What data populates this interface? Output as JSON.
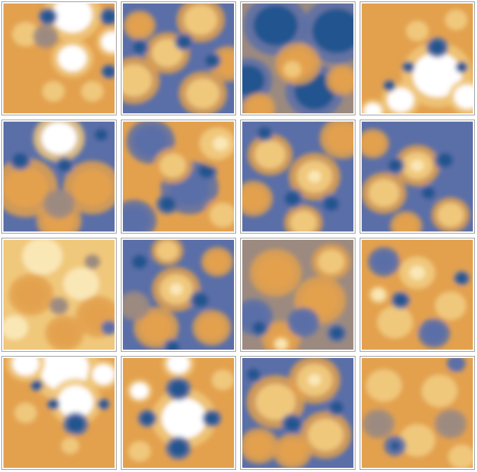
{
  "palette": {
    "c0": "#24548f",
    "c1": "#5a6ea8",
    "c2": "#9c8a80",
    "c3": "#e3a14e",
    "c4": "#f0c87b",
    "c5": "#fae7b6",
    "c6": "#ffffff"
  },
  "plots": [
    {
      "id": "r1c1",
      "bg": "c3",
      "blobs": [
        [
          "c6",
          0.62,
          0.1,
          0.18
        ],
        [
          "c6",
          0.62,
          0.5,
          0.13
        ],
        [
          "c6",
          0.98,
          0.35,
          0.1
        ],
        [
          "c0",
          0.4,
          0.12,
          0.06
        ],
        [
          "c0",
          0.95,
          0.12,
          0.06
        ],
        [
          "c0",
          0.95,
          0.62,
          0.05
        ],
        [
          "c4",
          0.2,
          0.28,
          0.12
        ],
        [
          "c4",
          0.45,
          0.8,
          0.1
        ],
        [
          "c4",
          0.8,
          0.8,
          0.1
        ],
        [
          "c2",
          0.38,
          0.3,
          0.08
        ]
      ]
    },
    {
      "id": "r1c2",
      "bg": "c1",
      "blobs": [
        [
          "c4",
          0.7,
          0.15,
          0.15
        ],
        [
          "c4",
          0.4,
          0.45,
          0.14
        ],
        [
          "c4",
          0.72,
          0.82,
          0.15
        ],
        [
          "c4",
          0.1,
          0.7,
          0.16
        ],
        [
          "c3",
          0.95,
          0.55,
          0.12
        ],
        [
          "c3",
          0.15,
          0.2,
          0.1
        ],
        [
          "c0",
          0.55,
          0.35,
          0.06
        ],
        [
          "c0",
          0.8,
          0.52,
          0.06
        ],
        [
          "c0",
          0.15,
          0.4,
          0.06
        ]
      ]
    },
    {
      "id": "r1c3",
      "bg": "c2",
      "blobs": [
        [
          "c0",
          0.85,
          0.25,
          0.22
        ],
        [
          "c0",
          0.3,
          0.2,
          0.2
        ],
        [
          "c0",
          0.05,
          0.7,
          0.15
        ],
        [
          "c0",
          0.65,
          0.8,
          0.18
        ],
        [
          "c3",
          0.5,
          0.55,
          0.14
        ],
        [
          "c3",
          0.9,
          0.7,
          0.1
        ],
        [
          "c4",
          0.45,
          0.6,
          0.08
        ],
        [
          "c3",
          0.15,
          0.95,
          0.1
        ]
      ]
    },
    {
      "id": "r1c4",
      "bg": "c3",
      "blobs": [
        [
          "c6",
          0.68,
          0.65,
          0.22
        ],
        [
          "c6",
          0.35,
          0.88,
          0.12
        ],
        [
          "c6",
          0.95,
          0.85,
          0.12
        ],
        [
          "c6",
          0.1,
          0.98,
          0.08
        ],
        [
          "c0",
          0.68,
          0.4,
          0.07
        ],
        [
          "c0",
          0.42,
          0.58,
          0.04
        ],
        [
          "c0",
          0.9,
          0.58,
          0.04
        ],
        [
          "c0",
          0.25,
          0.75,
          0.04
        ],
        [
          "c4",
          0.5,
          0.25,
          0.1
        ],
        [
          "c4",
          0.85,
          0.15,
          0.1
        ]
      ]
    },
    {
      "id": "r2c1",
      "bg": "c1",
      "blobs": [
        [
          "c6",
          0.5,
          0.15,
          0.16
        ],
        [
          "c3",
          0.2,
          0.6,
          0.2
        ],
        [
          "c3",
          0.8,
          0.6,
          0.18
        ],
        [
          "c3",
          0.5,
          0.9,
          0.14
        ],
        [
          "c0",
          0.55,
          0.4,
          0.06
        ],
        [
          "c0",
          0.15,
          0.35,
          0.07
        ],
        [
          "c0",
          0.88,
          0.12,
          0.06
        ],
        [
          "c2",
          0.5,
          0.75,
          0.1
        ]
      ]
    },
    {
      "id": "r2c2",
      "bg": "c3",
      "blobs": [
        [
          "c1",
          0.25,
          0.18,
          0.15
        ],
        [
          "c1",
          0.6,
          0.6,
          0.18
        ],
        [
          "c1",
          0.1,
          0.9,
          0.14
        ],
        [
          "c0",
          0.75,
          0.45,
          0.07
        ],
        [
          "c0",
          0.4,
          0.75,
          0.07
        ],
        [
          "c4",
          0.85,
          0.2,
          0.16
        ],
        [
          "c4",
          0.45,
          0.4,
          0.12
        ],
        [
          "c4",
          0.9,
          0.85,
          0.12
        ],
        [
          "c5",
          0.88,
          0.2,
          0.07
        ]
      ]
    },
    {
      "id": "r2c3",
      "bg": "c1",
      "blobs": [
        [
          "c4",
          0.25,
          0.3,
          0.14
        ],
        [
          "c4",
          0.65,
          0.5,
          0.16
        ],
        [
          "c4",
          0.55,
          0.92,
          0.12
        ],
        [
          "c3",
          0.9,
          0.15,
          0.14
        ],
        [
          "c3",
          0.1,
          0.7,
          0.12
        ],
        [
          "c0",
          0.45,
          0.7,
          0.07
        ],
        [
          "c0",
          0.8,
          0.75,
          0.07
        ],
        [
          "c0",
          0.2,
          0.1,
          0.06
        ],
        [
          "c5",
          0.65,
          0.5,
          0.06
        ]
      ]
    },
    {
      "id": "r2c4",
      "bg": "c1",
      "blobs": [
        [
          "c4",
          0.5,
          0.4,
          0.14
        ],
        [
          "c4",
          0.2,
          0.65,
          0.14
        ],
        [
          "c4",
          0.8,
          0.85,
          0.12
        ],
        [
          "c3",
          0.1,
          0.2,
          0.1
        ],
        [
          "c3",
          0.4,
          0.95,
          0.1
        ],
        [
          "c0",
          0.75,
          0.35,
          0.07
        ],
        [
          "c0",
          0.3,
          0.4,
          0.06
        ],
        [
          "c0",
          0.6,
          0.65,
          0.06
        ],
        [
          "c5",
          0.5,
          0.4,
          0.06
        ]
      ]
    },
    {
      "id": "r3c1",
      "bg": "c4",
      "blobs": [
        [
          "c5",
          0.35,
          0.15,
          0.18
        ],
        [
          "c5",
          0.7,
          0.4,
          0.16
        ],
        [
          "c5",
          0.1,
          0.8,
          0.12
        ],
        [
          "c3",
          0.25,
          0.5,
          0.14
        ],
        [
          "c3",
          0.85,
          0.7,
          0.14
        ],
        [
          "c3",
          0.55,
          0.85,
          0.12
        ],
        [
          "c2",
          0.5,
          0.6,
          0.06
        ],
        [
          "c2",
          0.8,
          0.2,
          0.05
        ],
        [
          "c1",
          0.95,
          0.8,
          0.05
        ]
      ]
    },
    {
      "id": "r3c2",
      "bg": "c1",
      "blobs": [
        [
          "c4",
          0.48,
          0.45,
          0.15
        ],
        [
          "c3",
          0.3,
          0.8,
          0.14
        ],
        [
          "c3",
          0.8,
          0.8,
          0.12
        ],
        [
          "c3",
          0.85,
          0.2,
          0.1
        ],
        [
          "c4",
          0.4,
          0.1,
          0.1
        ],
        [
          "c0",
          0.15,
          0.2,
          0.07
        ],
        [
          "c0",
          0.7,
          0.55,
          0.07
        ],
        [
          "c0",
          0.45,
          0.98,
          0.06
        ],
        [
          "c5",
          0.48,
          0.45,
          0.06
        ],
        [
          "c2",
          0.1,
          0.6,
          0.1
        ]
      ]
    },
    {
      "id": "r3c3",
      "bg": "c2",
      "blobs": [
        [
          "c3",
          0.3,
          0.3,
          0.16
        ],
        [
          "c3",
          0.7,
          0.55,
          0.16
        ],
        [
          "c3",
          0.35,
          0.9,
          0.12
        ],
        [
          "c4",
          0.8,
          0.2,
          0.12
        ],
        [
          "c1",
          0.1,
          0.7,
          0.12
        ],
        [
          "c1",
          0.55,
          0.75,
          0.1
        ],
        [
          "c0",
          0.15,
          0.8,
          0.06
        ],
        [
          "c0",
          0.85,
          0.85,
          0.06
        ],
        [
          "c5",
          0.35,
          0.95,
          0.05
        ]
      ]
    },
    {
      "id": "r3c4",
      "bg": "c3",
      "blobs": [
        [
          "c4",
          0.5,
          0.3,
          0.16
        ],
        [
          "c4",
          0.3,
          0.75,
          0.16
        ],
        [
          "c4",
          0.8,
          0.6,
          0.14
        ],
        [
          "c5",
          0.5,
          0.3,
          0.07
        ],
        [
          "c5",
          0.15,
          0.5,
          0.06
        ],
        [
          "c1",
          0.2,
          0.2,
          0.1
        ],
        [
          "c1",
          0.65,
          0.85,
          0.1
        ],
        [
          "c0",
          0.35,
          0.55,
          0.06
        ],
        [
          "c0",
          0.9,
          0.35,
          0.05
        ]
      ]
    },
    {
      "id": "r4c1",
      "bg": "c3",
      "blobs": [
        [
          "c6",
          0.55,
          0.1,
          0.22
        ],
        [
          "c6",
          0.65,
          0.4,
          0.16
        ],
        [
          "c6",
          0.2,
          0.05,
          0.12
        ],
        [
          "c6",
          0.9,
          0.15,
          0.1
        ],
        [
          "c0",
          0.65,
          0.6,
          0.08
        ],
        [
          "c0",
          0.3,
          0.25,
          0.04
        ],
        [
          "c0",
          0.45,
          0.42,
          0.04
        ],
        [
          "c0",
          0.9,
          0.42,
          0.04
        ],
        [
          "c4",
          0.2,
          0.5,
          0.1
        ],
        [
          "c4",
          0.6,
          0.8,
          0.08
        ]
      ]
    },
    {
      "id": "r4c2",
      "bg": "c3",
      "blobs": [
        [
          "c6",
          0.55,
          0.55,
          0.2
        ],
        [
          "c6",
          0.5,
          0.05,
          0.1
        ],
        [
          "c6",
          0.15,
          0.3,
          0.08
        ],
        [
          "c0",
          0.5,
          0.28,
          0.08
        ],
        [
          "c0",
          0.5,
          0.82,
          0.08
        ],
        [
          "c0",
          0.22,
          0.55,
          0.06
        ],
        [
          "c0",
          0.8,
          0.55,
          0.06
        ],
        [
          "c4",
          0.9,
          0.2,
          0.1
        ],
        [
          "c4",
          0.15,
          0.85,
          0.1
        ]
      ]
    },
    {
      "id": "r4c3",
      "bg": "c1",
      "blobs": [
        [
          "c4",
          0.3,
          0.4,
          0.18
        ],
        [
          "c4",
          0.65,
          0.2,
          0.16
        ],
        [
          "c4",
          0.75,
          0.7,
          0.16
        ],
        [
          "c3",
          0.15,
          0.8,
          0.12
        ],
        [
          "c3",
          0.45,
          0.85,
          0.12
        ],
        [
          "c0",
          0.45,
          0.6,
          0.07
        ],
        [
          "c0",
          0.85,
          0.45,
          0.06
        ],
        [
          "c0",
          0.1,
          0.15,
          0.06
        ],
        [
          "c5",
          0.65,
          0.2,
          0.06
        ]
      ]
    },
    {
      "id": "r4c4",
      "bg": "c3",
      "blobs": [
        [
          "c4",
          0.2,
          0.25,
          0.16
        ],
        [
          "c4",
          0.7,
          0.3,
          0.16
        ],
        [
          "c4",
          0.5,
          0.75,
          0.16
        ],
        [
          "c4",
          0.9,
          0.9,
          0.12
        ],
        [
          "c2",
          0.15,
          0.6,
          0.1
        ],
        [
          "c2",
          0.8,
          0.6,
          0.1
        ],
        [
          "c1",
          0.3,
          0.8,
          0.07
        ],
        [
          "c1",
          0.85,
          0.05,
          0.06
        ],
        [
          "c0",
          0.3,
          0.8,
          0.04
        ]
      ]
    }
  ]
}
